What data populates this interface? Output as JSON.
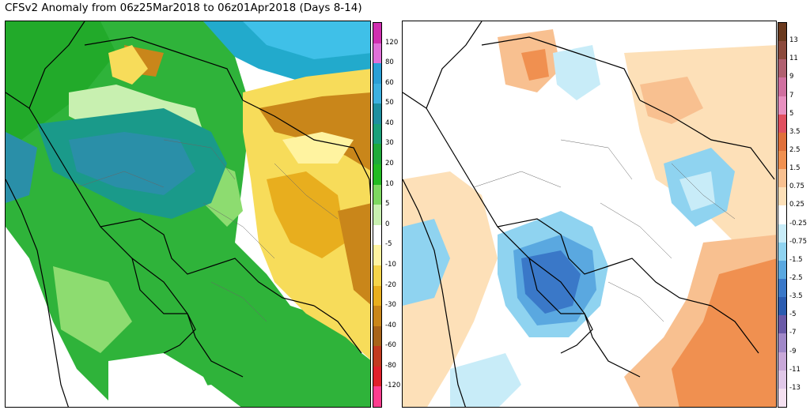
{
  "title": "CFSv2 Anomaly from 06z25Mar2018 to 06z01Apr2018 (Days 8-14)",
  "left_panel": {
    "colorbar": {
      "labels": [
        "120",
        "80",
        "60",
        "50",
        "40",
        "30",
        "20",
        "10",
        "5",
        "0",
        "-5",
        "-10",
        "-20",
        "-30",
        "-40",
        "-60",
        "-80",
        "-120"
      ],
      "colors": [
        "#d02fb0",
        "#e070d8",
        "#2a9fd6",
        "#3cb0e0",
        "#1e8fa0",
        "#1aa07a",
        "#1faa3a",
        "#22bb22",
        "#7dd860",
        "#c8f0b0",
        "#ffffff",
        "#fff3a0",
        "#f5d44a",
        "#e8ae1e",
        "#c9861a",
        "#a8641a",
        "#c23a20",
        "#e0202a",
        "#ff3d8f"
      ]
    }
  },
  "right_panel": {
    "colorbar": {
      "labels": [
        "13",
        "11",
        "9",
        "7",
        "5",
        "3.5",
        "2.5",
        "1.5",
        "0.75",
        "0.25",
        "-0.25",
        "-0.75",
        "-1.5",
        "-2.5",
        "-3.5",
        "-5",
        "-7",
        "-9",
        "-11",
        "-13"
      ],
      "colors": [
        "#6b3a1e",
        "#8c4a3c",
        "#b06070",
        "#d070a0",
        "#e890c0",
        "#e05060",
        "#e0703a",
        "#f09050",
        "#f8c090",
        "#fde0b8",
        "#ffffff",
        "#c8ecf8",
        "#8fd3f0",
        "#5aa8e0",
        "#3a78c8",
        "#2b5cb0",
        "#6a5aa8",
        "#a088c8",
        "#c8a8d8",
        "#e0c8e8",
        "#f4e0f0"
      ]
    }
  }
}
